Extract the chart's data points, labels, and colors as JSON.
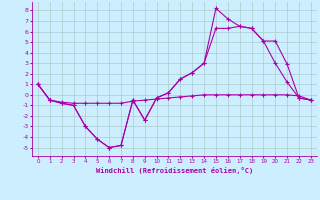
{
  "xlabel": "Windchill (Refroidissement éolien,°C)",
  "xlim": [
    -0.5,
    23.5
  ],
  "ylim": [
    -5.8,
    8.8
  ],
  "xticks": [
    0,
    1,
    2,
    3,
    4,
    5,
    6,
    7,
    8,
    9,
    10,
    11,
    12,
    13,
    14,
    15,
    16,
    17,
    18,
    19,
    20,
    21,
    22,
    23
  ],
  "yticks": [
    -5,
    -4,
    -3,
    -2,
    -1,
    0,
    1,
    2,
    3,
    4,
    5,
    6,
    7,
    8
  ],
  "background_color": "#cceeff",
  "grid_color": "#aacccc",
  "line_color": "#aa00aa",
  "line1_y": [
    1.0,
    -0.5,
    -0.8,
    -1.0,
    -3.0,
    -4.2,
    -5.0,
    -4.8,
    -0.5,
    -2.4,
    -0.3,
    0.2,
    1.5,
    2.1,
    3.0,
    8.2,
    7.2,
    6.5,
    6.3,
    5.1,
    3.0,
    1.2,
    -0.3,
    -0.5
  ],
  "line2_y": [
    1.0,
    -0.5,
    -0.8,
    -1.0,
    -3.0,
    -4.2,
    -5.0,
    -4.8,
    -0.5,
    -2.4,
    -0.3,
    0.2,
    1.5,
    2.1,
    3.0,
    6.3,
    6.3,
    6.5,
    6.3,
    5.1,
    5.1,
    2.9,
    -0.3,
    -0.5
  ],
  "line3_y": [
    1.0,
    -0.5,
    -0.7,
    -0.8,
    -0.8,
    -0.8,
    -0.8,
    -0.8,
    -0.6,
    -0.5,
    -0.4,
    -0.3,
    -0.2,
    -0.1,
    0.0,
    0.0,
    0.0,
    0.0,
    0.0,
    0.0,
    0.0,
    0.0,
    -0.1,
    -0.5
  ]
}
